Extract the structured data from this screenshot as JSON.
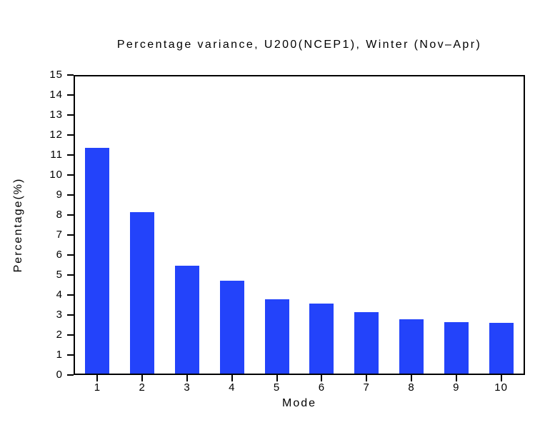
{
  "chart_data": {
    "type": "bar",
    "title": "Percentage variance, U200(NCEP1), Winter (Nov–Apr)",
    "xlabel": "Mode",
    "ylabel": "Percentage(%)",
    "categories": [
      "1",
      "2",
      "3",
      "4",
      "5",
      "6",
      "7",
      "8",
      "9",
      "10"
    ],
    "values": [
      11.4,
      8.15,
      5.45,
      4.7,
      3.75,
      3.55,
      3.1,
      2.75,
      2.6,
      2.55
    ],
    "ylim": [
      0,
      15
    ],
    "ytick_step": 1,
    "bar_width_fraction": 0.54,
    "grid": false,
    "legend_position": "none",
    "colors": {
      "bar": "#2343FA",
      "axis": "#000000",
      "background": "#ffffff"
    }
  }
}
